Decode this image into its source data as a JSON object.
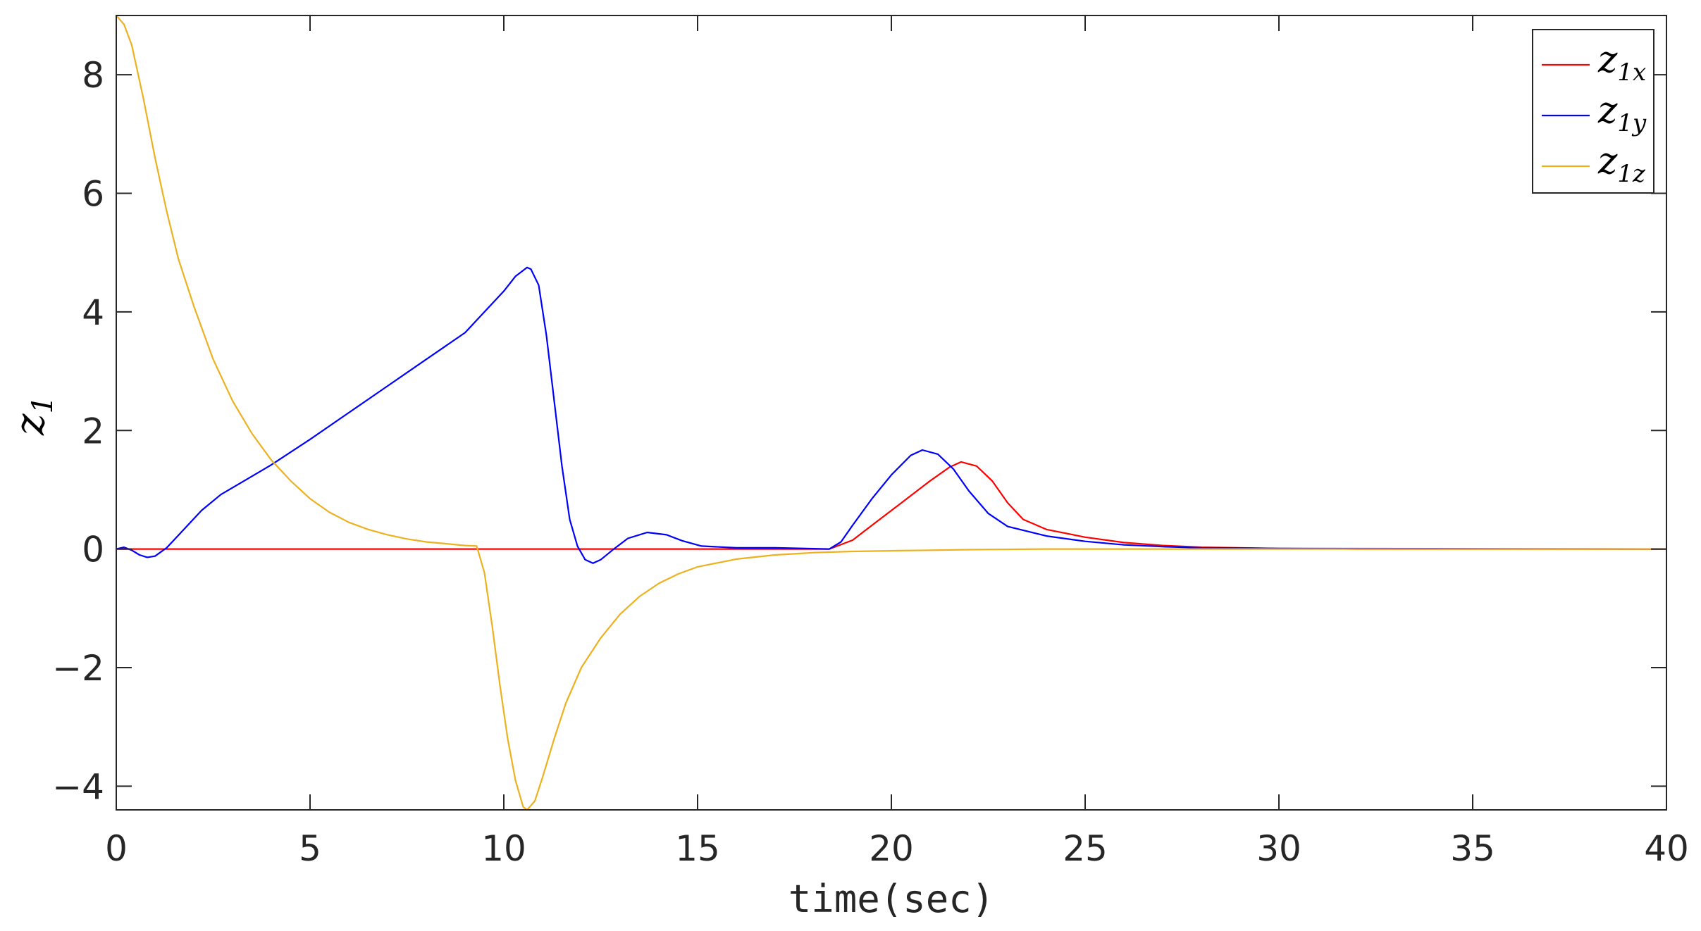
{
  "chart_data": {
    "type": "line",
    "xlabel": "time(sec)",
    "ylabel": {
      "base": "z",
      "sub": "1"
    },
    "xlim": [
      0,
      40
    ],
    "ylim": [
      -4.4,
      9.0
    ],
    "xticks": [
      0,
      5,
      10,
      15,
      20,
      25,
      30,
      35,
      40
    ],
    "yticks": [
      -4,
      -2,
      0,
      2,
      4,
      6,
      8
    ],
    "xtick_labels": [
      "0",
      "5",
      "10",
      "15",
      "20",
      "25",
      "30",
      "35",
      "40"
    ],
    "ytick_labels": [
      "−4",
      "−2",
      "0",
      "2",
      "4",
      "6",
      "8"
    ],
    "grid": false,
    "legend_position": "top-right",
    "series": [
      {
        "name": "z_1x",
        "label_base": "z",
        "label_sub": "1x",
        "color": "#ff0000",
        "points": [
          [
            0,
            0
          ],
          [
            18.4,
            0
          ],
          [
            19,
            0.15
          ],
          [
            19.5,
            0.4
          ],
          [
            20,
            0.65
          ],
          [
            20.5,
            0.9
          ],
          [
            21,
            1.15
          ],
          [
            21.5,
            1.38
          ],
          [
            21.8,
            1.47
          ],
          [
            22.2,
            1.4
          ],
          [
            22.6,
            1.15
          ],
          [
            23,
            0.78
          ],
          [
            23.4,
            0.5
          ],
          [
            24,
            0.33
          ],
          [
            25,
            0.2
          ],
          [
            26,
            0.11
          ],
          [
            27,
            0.06
          ],
          [
            28,
            0.03
          ],
          [
            30,
            0.01
          ],
          [
            32,
            0.0
          ],
          [
            40,
            0
          ]
        ]
      },
      {
        "name": "z_1y",
        "label_base": "z",
        "label_sub": "1y",
        "color": "#0000ff",
        "points": [
          [
            0,
            0
          ],
          [
            0.2,
            0.03
          ],
          [
            0.4,
            -0.02
          ],
          [
            0.6,
            -0.1
          ],
          [
            0.8,
            -0.14
          ],
          [
            1.0,
            -0.12
          ],
          [
            1.3,
            0.02
          ],
          [
            1.7,
            0.3
          ],
          [
            2.2,
            0.65
          ],
          [
            2.7,
            0.92
          ],
          [
            3.3,
            1.15
          ],
          [
            4,
            1.42
          ],
          [
            5,
            1.85
          ],
          [
            6,
            2.3
          ],
          [
            7,
            2.75
          ],
          [
            8,
            3.2
          ],
          [
            9,
            3.65
          ],
          [
            10,
            4.35
          ],
          [
            10.3,
            4.6
          ],
          [
            10.6,
            4.75
          ],
          [
            10.7,
            4.72
          ],
          [
            10.9,
            4.45
          ],
          [
            11.1,
            3.6
          ],
          [
            11.3,
            2.5
          ],
          [
            11.5,
            1.4
          ],
          [
            11.7,
            0.5
          ],
          [
            11.9,
            0.05
          ],
          [
            12.1,
            -0.18
          ],
          [
            12.3,
            -0.24
          ],
          [
            12.5,
            -0.18
          ],
          [
            12.8,
            -0.02
          ],
          [
            13.2,
            0.18
          ],
          [
            13.7,
            0.28
          ],
          [
            14.2,
            0.24
          ],
          [
            14.6,
            0.14
          ],
          [
            15.1,
            0.05
          ],
          [
            16,
            0.02
          ],
          [
            17,
            0.02
          ],
          [
            18.4,
            0.0
          ],
          [
            18.7,
            0.12
          ],
          [
            19,
            0.4
          ],
          [
            19.5,
            0.85
          ],
          [
            20,
            1.25
          ],
          [
            20.5,
            1.58
          ],
          [
            20.8,
            1.67
          ],
          [
            21.2,
            1.6
          ],
          [
            21.6,
            1.35
          ],
          [
            22,
            0.98
          ],
          [
            22.5,
            0.6
          ],
          [
            23,
            0.38
          ],
          [
            24,
            0.22
          ],
          [
            25,
            0.13
          ],
          [
            26,
            0.07
          ],
          [
            27,
            0.04
          ],
          [
            28,
            0.02
          ],
          [
            30,
            0.01
          ],
          [
            40,
            0
          ]
        ]
      },
      {
        "name": "z_1z",
        "label_base": "z",
        "label_sub": "1z",
        "color": "#edb120",
        "points": [
          [
            0,
            9.0
          ],
          [
            0.2,
            8.85
          ],
          [
            0.4,
            8.5
          ],
          [
            0.7,
            7.6
          ],
          [
            1,
            6.6
          ],
          [
            1.3,
            5.7
          ],
          [
            1.6,
            4.9
          ],
          [
            2,
            4.1
          ],
          [
            2.5,
            3.2
          ],
          [
            3,
            2.5
          ],
          [
            3.5,
            1.95
          ],
          [
            4,
            1.5
          ],
          [
            4.5,
            1.15
          ],
          [
            5,
            0.85
          ],
          [
            5.5,
            0.62
          ],
          [
            6,
            0.45
          ],
          [
            6.5,
            0.33
          ],
          [
            7,
            0.24
          ],
          [
            7.5,
            0.17
          ],
          [
            8,
            0.12
          ],
          [
            8.5,
            0.09
          ],
          [
            9,
            0.06
          ],
          [
            9.3,
            0.05
          ],
          [
            9.5,
            -0.4
          ],
          [
            9.7,
            -1.3
          ],
          [
            9.9,
            -2.3
          ],
          [
            10.1,
            -3.2
          ],
          [
            10.3,
            -3.9
          ],
          [
            10.5,
            -4.35
          ],
          [
            10.6,
            -4.4
          ],
          [
            10.8,
            -4.25
          ],
          [
            11,
            -3.85
          ],
          [
            11.3,
            -3.2
          ],
          [
            11.6,
            -2.6
          ],
          [
            12,
            -2.0
          ],
          [
            12.5,
            -1.5
          ],
          [
            13,
            -1.1
          ],
          [
            13.5,
            -0.8
          ],
          [
            14,
            -0.58
          ],
          [
            14.5,
            -0.42
          ],
          [
            15,
            -0.3
          ],
          [
            16,
            -0.17
          ],
          [
            17,
            -0.1
          ],
          [
            18,
            -0.06
          ],
          [
            19,
            -0.04
          ],
          [
            20,
            -0.03
          ],
          [
            21,
            -0.02
          ],
          [
            22,
            -0.01
          ],
          [
            24,
            0.0
          ],
          [
            40,
            0
          ]
        ]
      }
    ]
  }
}
